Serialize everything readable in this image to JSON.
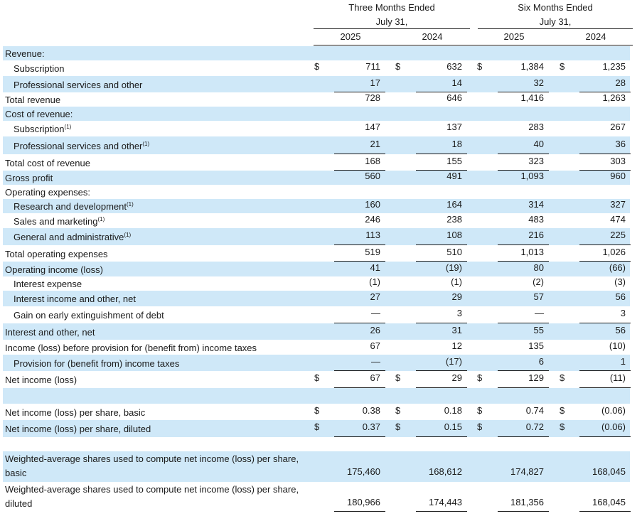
{
  "header": {
    "group1_title": "Three Months Ended",
    "group1_sub": "July 31,",
    "group2_title": "Six Months Ended",
    "group2_sub": "July 31,",
    "years": [
      "2025",
      "2024",
      "2025",
      "2024"
    ]
  },
  "rows": [
    {
      "label": "Revenue:",
      "indent": false,
      "shade": true,
      "values": [
        "",
        "",
        "",
        ""
      ],
      "dollar": false
    },
    {
      "label": "Subscription",
      "indent": true,
      "shade": false,
      "values": [
        "711",
        "632",
        "1,384",
        "1,235"
      ],
      "dollar": true
    },
    {
      "label": "Professional services and other",
      "indent": true,
      "shade": true,
      "values": [
        "17",
        "14",
        "32",
        "28"
      ],
      "dollar": false,
      "underline": true
    },
    {
      "label": "Total revenue",
      "indent": false,
      "shade": false,
      "values": [
        "728",
        "646",
        "1,416",
        "1,263"
      ],
      "dollar": false
    },
    {
      "label": "Cost of revenue:",
      "indent": false,
      "shade": true,
      "values": [
        "",
        "",
        "",
        ""
      ],
      "dollar": false
    },
    {
      "label": "Subscription",
      "sup": "(1)",
      "indent": true,
      "shade": false,
      "values": [
        "147",
        "137",
        "283",
        "267"
      ],
      "dollar": false
    },
    {
      "label": "Professional services and other",
      "sup": "(1)",
      "indent": true,
      "shade": true,
      "values": [
        "21",
        "18",
        "40",
        "36"
      ],
      "dollar": false,
      "underline": true
    },
    {
      "label": "Total cost of revenue",
      "indent": false,
      "shade": false,
      "values": [
        "168",
        "155",
        "323",
        "303"
      ],
      "dollar": false,
      "underline": true
    },
    {
      "label": "Gross profit",
      "indent": false,
      "shade": true,
      "values": [
        "560",
        "491",
        "1,093",
        "960"
      ],
      "dollar": false
    },
    {
      "label": "Operating expenses:",
      "indent": false,
      "shade": false,
      "values": [
        "",
        "",
        "",
        ""
      ],
      "dollar": false
    },
    {
      "label": "Research and development",
      "sup": "(1)",
      "indent": true,
      "shade": true,
      "values": [
        "160",
        "164",
        "314",
        "327"
      ],
      "dollar": false
    },
    {
      "label": "Sales and marketing",
      "sup": "(1)",
      "indent": true,
      "shade": false,
      "values": [
        "246",
        "238",
        "483",
        "474"
      ],
      "dollar": false
    },
    {
      "label": "General and administrative",
      "sup": "(1)",
      "indent": true,
      "shade": true,
      "values": [
        "113",
        "108",
        "216",
        "225"
      ],
      "dollar": false,
      "underline": true
    },
    {
      "label": "Total operating expenses",
      "indent": false,
      "shade": false,
      "values": [
        "519",
        "510",
        "1,013",
        "1,026"
      ],
      "dollar": false,
      "underline": true
    },
    {
      "label": "Operating income (loss)",
      "indent": false,
      "shade": true,
      "values": [
        "41",
        "(19)",
        "80",
        "(66)"
      ],
      "dollar": false
    },
    {
      "label": "Interest expense",
      "indent": true,
      "shade": false,
      "values": [
        "(1)",
        "(1)",
        "(2)",
        "(3)"
      ],
      "dollar": false
    },
    {
      "label": "Interest income and other, net",
      "indent": true,
      "shade": true,
      "values": [
        "27",
        "29",
        "57",
        "56"
      ],
      "dollar": false
    },
    {
      "label": "Gain on early extinguishment of debt",
      "indent": true,
      "shade": false,
      "values": [
        "—",
        "3",
        "—",
        "3"
      ],
      "dollar": false,
      "underline": true
    },
    {
      "label": "Interest and other, net",
      "indent": false,
      "shade": true,
      "values": [
        "26",
        "31",
        "55",
        "56"
      ],
      "dollar": false
    },
    {
      "label": "Income (loss) before provision for (benefit from) income taxes",
      "indent": false,
      "shade": false,
      "values": [
        "67",
        "12",
        "135",
        "(10)"
      ],
      "dollar": false
    },
    {
      "label": "Provision for (benefit from) income taxes",
      "indent": true,
      "shade": true,
      "values": [
        "—",
        "(17)",
        "6",
        "1"
      ],
      "dollar": false,
      "underline": true
    },
    {
      "label": "Net income (loss)",
      "indent": false,
      "shade": false,
      "values": [
        "67",
        "29",
        "129",
        "(11)"
      ],
      "dollar": true,
      "underline": true
    },
    {
      "label": "",
      "indent": false,
      "shade": true,
      "values": [
        "",
        "",
        "",
        ""
      ],
      "dollar": false
    },
    {
      "label": "Net income (loss) per share, basic",
      "indent": false,
      "shade": false,
      "values": [
        "0.38",
        "0.18",
        "0.74",
        "(0.06)"
      ],
      "dollar": true
    },
    {
      "label": "Net income (loss) per share, diluted",
      "indent": false,
      "shade": true,
      "values": [
        "0.37",
        "0.15",
        "0.72",
        "(0.06)"
      ],
      "dollar": true,
      "underline": true
    },
    {
      "label": "",
      "indent": false,
      "shade": false,
      "values": [
        "",
        "",
        "",
        ""
      ],
      "dollar": false
    },
    {
      "label": "Weighted-average shares used to compute net income (loss) per share, basic",
      "indent": false,
      "shade": true,
      "values": [
        "175,460",
        "168,612",
        "174,827",
        "168,045"
      ],
      "dollar": false,
      "tall": true
    },
    {
      "label": "Weighted-average shares used to compute net income (loss) per share, diluted",
      "indent": false,
      "shade": false,
      "values": [
        "180,966",
        "174,443",
        "181,356",
        "168,045"
      ],
      "dollar": false,
      "tall": true,
      "underline": true
    }
  ],
  "currency_symbol": "$"
}
